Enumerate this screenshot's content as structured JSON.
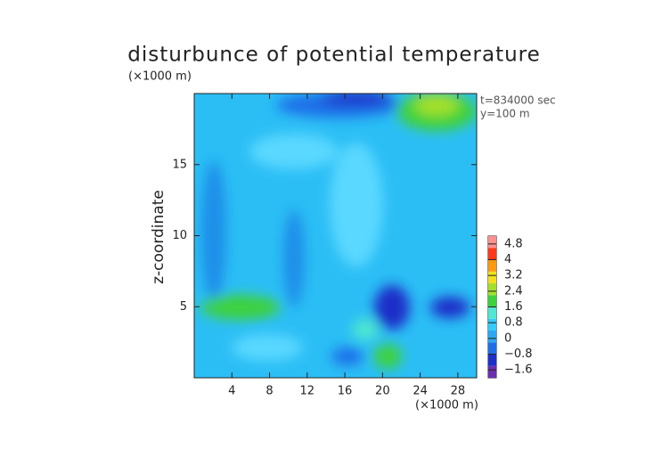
{
  "chart_data": {
    "type": "contour",
    "title": "disturbunce of potential temperature",
    "y_unit": "(×1000 m)",
    "x_unit": "(×1000 m)",
    "ylabel": "z-coordinate",
    "annotations": [
      "t=834000 sec",
      "y=100 m"
    ],
    "xlim": [
      0,
      30
    ],
    "ylim": [
      0,
      20
    ],
    "xticks": [
      4,
      8,
      12,
      16,
      20,
      24,
      28
    ],
    "yticks": [
      5,
      10,
      15
    ],
    "colorbar": {
      "lim": [
        -2,
        5.2
      ],
      "ticks": [
        {
          "value": -1.6,
          "label": "−1.6"
        },
        {
          "value": -0.8,
          "label": "−0.8"
        },
        0,
        0.8,
        1.6,
        2.4,
        3.2,
        4,
        4.8
      ],
      "colors": [
        "#6a2db0",
        "#1c2fc8",
        "#1f6ee8",
        "#2aa8f2",
        "#33ccff",
        "#4fe8d0",
        "#3cd23c",
        "#a4e02a",
        "#f0e020",
        "#ff9a10",
        "#ff3a1a",
        "#ff9090"
      ]
    }
  }
}
